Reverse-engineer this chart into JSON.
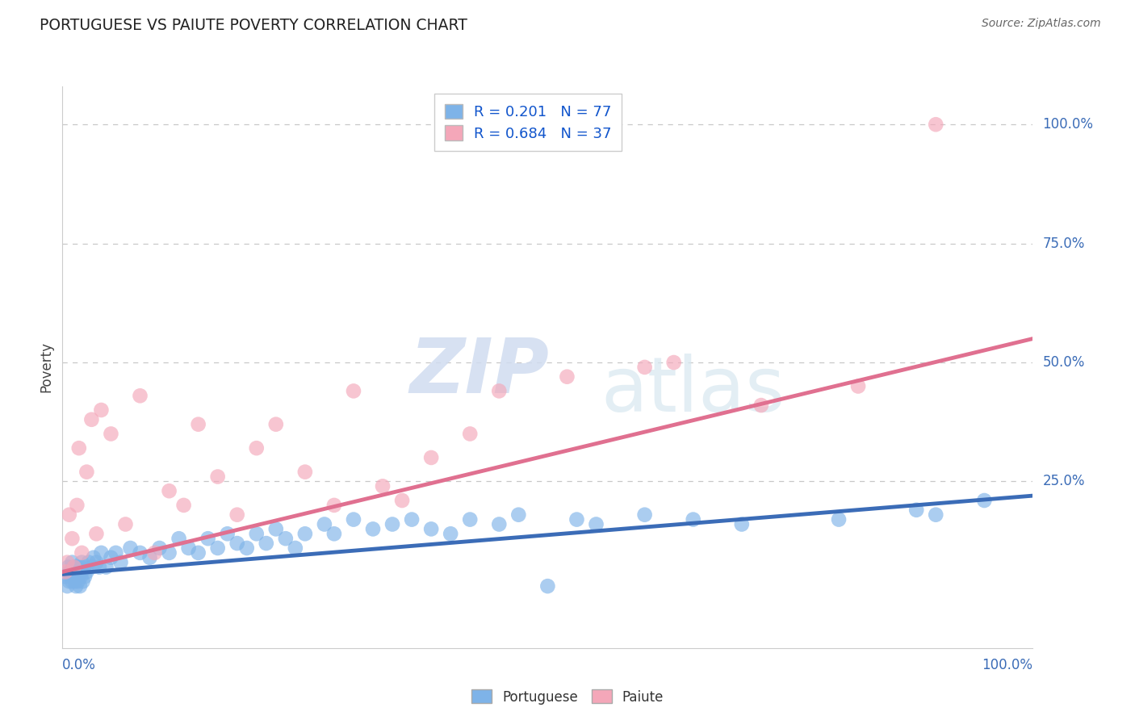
{
  "title": "PORTUGUESE VS PAIUTE POVERTY CORRELATION CHART",
  "source": "Source: ZipAtlas.com",
  "ylabel": "Poverty",
  "y_tick_labels": [
    "100.0%",
    "75.0%",
    "50.0%",
    "25.0%"
  ],
  "y_tick_positions": [
    100,
    75,
    50,
    25
  ],
  "x_range": [
    0,
    100
  ],
  "y_range": [
    -10,
    108
  ],
  "portuguese_color": "#7EB3E8",
  "paiute_color": "#F4A7B9",
  "portuguese_line_color": "#3B6CB7",
  "paiute_line_color": "#E07090",
  "portuguese_R": "0.201",
  "portuguese_N": "77",
  "paiute_R": "0.684",
  "paiute_N": "37",
  "background_color": "#FFFFFF",
  "grid_color": "#C8C8C8",
  "port_x": [
    0.3,
    0.5,
    0.6,
    0.7,
    0.8,
    0.9,
    1.0,
    1.0,
    1.1,
    1.2,
    1.2,
    1.3,
    1.4,
    1.4,
    1.5,
    1.5,
    1.6,
    1.7,
    1.8,
    1.8,
    1.9,
    2.0,
    2.0,
    2.1,
    2.2,
    2.3,
    2.5,
    2.7,
    3.0,
    3.2,
    3.5,
    3.8,
    4.0,
    4.5,
    5.0,
    5.5,
    6.0,
    7.0,
    8.0,
    9.0,
    10.0,
    11.0,
    12.0,
    13.0,
    14.0,
    15.0,
    16.0,
    17.0,
    18.0,
    19.0,
    20.0,
    21.0,
    22.0,
    23.0,
    24.0,
    25.0,
    27.0,
    28.0,
    30.0,
    32.0,
    34.0,
    36.0,
    38.0,
    40.0,
    42.0,
    45.0,
    47.0,
    50.0,
    53.0,
    55.0,
    60.0,
    65.0,
    70.0,
    80.0,
    88.0,
    90.0,
    95.0
  ],
  "port_y": [
    5,
    3,
    7,
    4,
    6,
    5,
    8,
    4,
    6,
    5,
    7,
    4,
    6,
    3,
    5,
    7,
    4,
    6,
    3,
    7,
    5,
    6,
    8,
    4,
    7,
    5,
    6,
    8,
    7,
    9,
    8,
    7,
    10,
    7,
    9,
    10,
    8,
    11,
    10,
    9,
    11,
    10,
    13,
    11,
    10,
    13,
    11,
    14,
    12,
    11,
    14,
    12,
    15,
    13,
    11,
    14,
    16,
    14,
    17,
    15,
    16,
    17,
    15,
    14,
    17,
    16,
    18,
    3,
    17,
    16,
    18,
    17,
    16,
    17,
    19,
    18,
    21
  ],
  "paiute_x": [
    0.3,
    0.5,
    0.7,
    1.0,
    1.2,
    1.5,
    1.7,
    2.0,
    2.5,
    3.0,
    3.5,
    4.0,
    5.0,
    6.5,
    8.0,
    9.5,
    11.0,
    12.5,
    14.0,
    16.0,
    18.0,
    20.0,
    22.0,
    25.0,
    28.0,
    30.0,
    33.0,
    35.0,
    38.0,
    42.0,
    45.0,
    52.0,
    60.0,
    63.0,
    72.0,
    82.0,
    90.0
  ],
  "paiute_y": [
    6,
    8,
    18,
    13,
    7,
    20,
    32,
    10,
    27,
    38,
    14,
    40,
    35,
    16,
    43,
    10,
    23,
    20,
    37,
    26,
    18,
    32,
    37,
    27,
    20,
    44,
    24,
    21,
    30,
    35,
    44,
    47,
    49,
    50,
    41,
    45,
    100
  ],
  "port_line_x0": 0,
  "port_line_y0": 5.5,
  "port_line_x1": 100,
  "port_line_y1": 22,
  "paiute_line_x0": 0,
  "paiute_line_y0": 6.0,
  "paiute_line_x1": 100,
  "paiute_line_y1": 55
}
